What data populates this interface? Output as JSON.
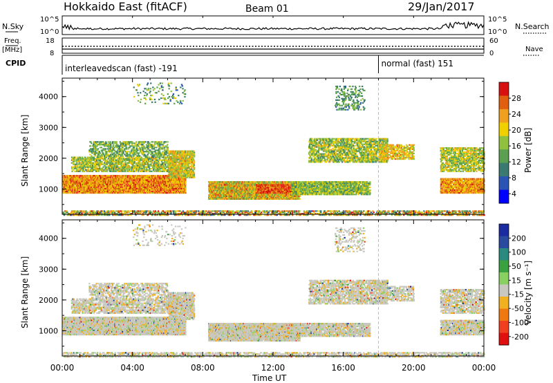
{
  "header": {
    "title": "Hokkaido East (fitACF)",
    "beam": "Beam 01",
    "date": "29/Jan/2017"
  },
  "top_panels": {
    "nsky_label": "N.Sky",
    "nsky_ticks": [
      "10^5",
      "10^0"
    ],
    "nsearch_label": "N.Search",
    "nsearch_ticks": [
      "10^5",
      "10^0"
    ],
    "freq_label": "Freq.",
    "freq_unit": "[MHz]",
    "freq_ticks": [
      "18",
      "8"
    ],
    "nave_label": "Nave",
    "nave_ticks": [
      "60",
      "0"
    ],
    "cpid_label": "CPID",
    "cpid_segments": [
      {
        "label": "interleavedscan (fast) -191",
        "start_hour": 0
      },
      {
        "label": "normal (fast) 151",
        "start_hour": 18
      }
    ]
  },
  "chart_data": [
    {
      "type": "heatmap",
      "name": "power",
      "ylabel": "Slant Range [km]",
      "yticks": [
        "4000",
        "3000",
        "2000",
        "1000"
      ],
      "ytick_values": [
        4000,
        3000,
        2000,
        1000
      ],
      "ylim": [
        180,
        4600
      ],
      "xlim": [
        0,
        24
      ],
      "colorbar_label": "Power [dB]",
      "colorbar_ticks": [
        "28",
        "24",
        "20",
        "16",
        "12",
        "8",
        "4"
      ],
      "colorbar_tick_values": [
        28,
        24,
        20,
        16,
        12,
        8,
        4
      ],
      "colorbar_range": [
        0,
        30
      ],
      "colors": [
        "#0000ff",
        "#2b55b4",
        "#3a7a70",
        "#5aa050",
        "#8fc040",
        "#f0d000",
        "#f0a020",
        "#e06010",
        "#d81010"
      ]
    },
    {
      "type": "heatmap",
      "name": "velocity",
      "ylabel": "Slant Range [km]",
      "yticks": [
        "4000",
        "3000",
        "2000",
        "1000"
      ],
      "ytick_values": [
        4000,
        3000,
        2000,
        1000
      ],
      "ylim": [
        180,
        4600
      ],
      "xlim": [
        0,
        24
      ],
      "colorbar_label": "Velocity [m s⁻¹]",
      "colorbar_ticks": [
        "200",
        "100",
        "50",
        "15",
        "-15",
        "-50",
        "-100",
        "-200"
      ],
      "colorbar_tick_values": [
        200,
        100,
        50,
        15,
        -15,
        -50,
        -100,
        -200
      ],
      "colors": [
        "#e01010",
        "#f04020",
        "#f07810",
        "#f0b020",
        "#c8c8c0",
        "#8ad060",
        "#3aa040",
        "#2a8a80",
        "#2a4aa0",
        "#1a2aa0"
      ]
    }
  ],
  "xaxis": {
    "label": "Time UT",
    "ticks": [
      "00:00",
      "04:00",
      "08:00",
      "12:00",
      "16:00",
      "20:00",
      "00:00"
    ],
    "tick_hours": [
      0,
      4,
      8,
      12,
      16,
      20,
      24
    ]
  }
}
